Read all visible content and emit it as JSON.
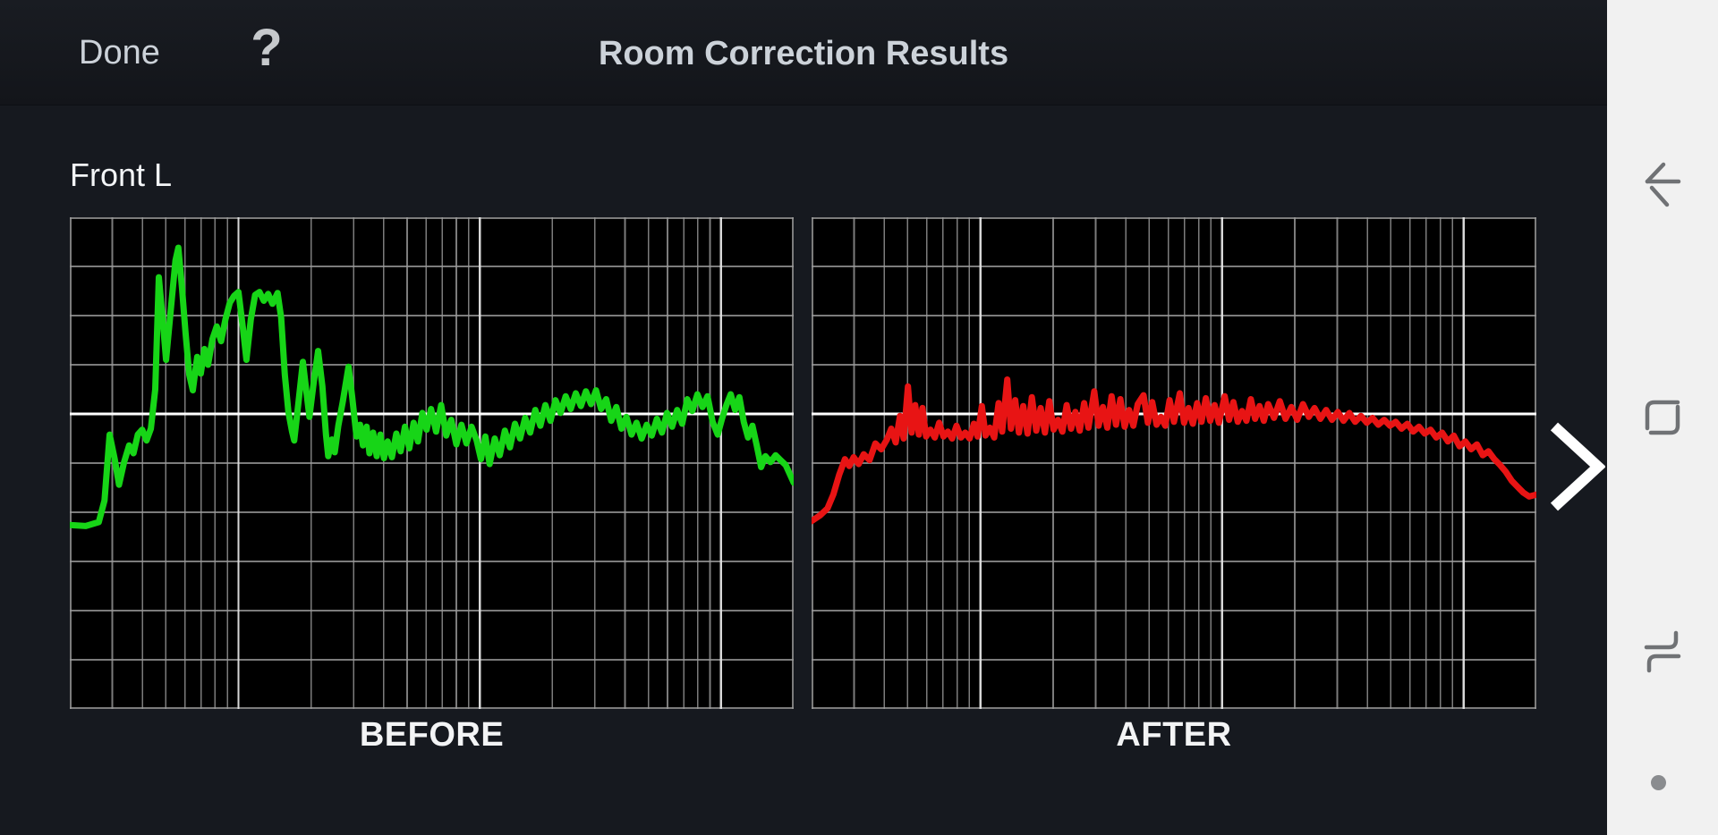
{
  "topbar": {
    "done_label": "Done",
    "help_label": "?",
    "title": "Room Correction Results"
  },
  "channel_label": "Front L",
  "pager": {
    "next_icon": "chevron-right"
  },
  "navbar": {
    "items": [
      {
        "id": "back",
        "icon": "back-arrow-icon"
      },
      {
        "id": "home",
        "icon": "home-outline-icon"
      },
      {
        "id": "recents",
        "icon": "recents-icon"
      }
    ],
    "handle": "hide-navbar-dot"
  },
  "colors": {
    "app_bg": "#16191f",
    "topbar_bg_top": "#191c22",
    "topbar_bg_bottom": "#13151a",
    "text_primary": "#f3f5f7",
    "text_secondary": "#ccd2d9",
    "chart_bg": "#000000",
    "grid_minor": "#9b9b9b",
    "grid_major": "#e3e3e3",
    "grid_reference": "#ffffff",
    "before_curve": "#17d517",
    "after_curve": "#e81414",
    "chevron": "#ffffff",
    "navbar_bg": "#f1f1f1",
    "navbar_icon": "#707275"
  },
  "chart_data": [
    {
      "type": "line",
      "title": "BEFORE",
      "series": [
        {
          "name": "Front L response before correction",
          "color_key": "before_curve"
        }
      ],
      "x_axis": {
        "scale": "log",
        "min_hz": 20,
        "max_hz": 20000,
        "major_gridlines_hz": [
          100,
          1000,
          10000
        ],
        "minor_gridlines": "steps 2-9 within each decade",
        "tick_labels": false
      },
      "y_axis": {
        "units": "dB relative to reference line",
        "db_per_division": 5,
        "top_db": 20,
        "bottom_db": -30,
        "reference_db": 0,
        "tick_labels": false
      },
      "legend": false,
      "points_format": "x = log10(hz/20)/3 (0..1 across axis), y = dB relative to reference",
      "points": [
        [
          0,
          -11.3
        ],
        [
          0.022,
          -11.4
        ],
        [
          0.04,
          -11
        ],
        [
          0.048,
          -8.8
        ],
        [
          0.055,
          -2.1
        ],
        [
          0.062,
          -4.6
        ],
        [
          0.068,
          -7.2
        ],
        [
          0.075,
          -4.9
        ],
        [
          0.082,
          -3.2
        ],
        [
          0.088,
          -4
        ],
        [
          0.094,
          -2.1
        ],
        [
          0.1,
          -1.6
        ],
        [
          0.106,
          -2.7
        ],
        [
          0.112,
          -1.5
        ],
        [
          0.118,
          2.5
        ],
        [
          0.123,
          13.9
        ],
        [
          0.128,
          9.8
        ],
        [
          0.133,
          5.5
        ],
        [
          0.14,
          11
        ],
        [
          0.146,
          15.6
        ],
        [
          0.15,
          16.9
        ],
        [
          0.155,
          12.8
        ],
        [
          0.16,
          8.2
        ],
        [
          0.165,
          4
        ],
        [
          0.17,
          2.4
        ],
        [
          0.176,
          5.8
        ],
        [
          0.181,
          4.1
        ],
        [
          0.186,
          6.6
        ],
        [
          0.191,
          5
        ],
        [
          0.197,
          7.6
        ],
        [
          0.203,
          8.9
        ],
        [
          0.209,
          7.4
        ],
        [
          0.215,
          9.6
        ],
        [
          0.221,
          11.3
        ],
        [
          0.227,
          12
        ],
        [
          0.233,
          12.4
        ],
        [
          0.239,
          8.8
        ],
        [
          0.244,
          5.5
        ],
        [
          0.25,
          9.6
        ],
        [
          0.256,
          12.1
        ],
        [
          0.262,
          12.4
        ],
        [
          0.268,
          11.5
        ],
        [
          0.274,
          12.2
        ],
        [
          0.28,
          11.2
        ],
        [
          0.287,
          12.3
        ],
        [
          0.292,
          9.8
        ],
        [
          0.297,
          4
        ],
        [
          0.302,
          0.2
        ],
        [
          0.307,
          -1.8
        ],
        [
          0.31,
          -2.7
        ],
        [
          0.316,
          1.2
        ],
        [
          0.322,
          5.3
        ],
        [
          0.327,
          2.2
        ],
        [
          0.331,
          -0.3
        ],
        [
          0.337,
          3.2
        ],
        [
          0.343,
          6.4
        ],
        [
          0.349,
          2.8
        ],
        [
          0.354,
          -2.2
        ],
        [
          0.357,
          -4.3
        ],
        [
          0.362,
          -2.6
        ],
        [
          0.366,
          -3.9
        ],
        [
          0.371,
          -1.2
        ],
        [
          0.377,
          1.2
        ],
        [
          0.385,
          4.8
        ],
        [
          0.39,
          1.8
        ],
        [
          0.396,
          -2.3
        ],
        [
          0.401,
          -1.1
        ],
        [
          0.405,
          -3.2
        ],
        [
          0.41,
          -1.3
        ],
        [
          0.414,
          -4
        ],
        [
          0.419,
          -1.9
        ],
        [
          0.424,
          -4.3
        ],
        [
          0.429,
          -2.1
        ],
        [
          0.434,
          -4.5
        ],
        [
          0.439,
          -2.8
        ],
        [
          0.445,
          -4.4
        ],
        [
          0.451,
          -2
        ],
        [
          0.457,
          -3.8
        ],
        [
          0.463,
          -1.3
        ],
        [
          0.469,
          -3.5
        ],
        [
          0.475,
          -0.9
        ],
        [
          0.481,
          -2.8
        ],
        [
          0.487,
          0.1
        ],
        [
          0.493,
          -1.6
        ],
        [
          0.499,
          0.5
        ],
        [
          0.506,
          -1.8
        ],
        [
          0.513,
          0.9
        ],
        [
          0.52,
          -2.2
        ],
        [
          0.527,
          -0.6
        ],
        [
          0.534,
          -3.1
        ],
        [
          0.541,
          -1.1
        ],
        [
          0.548,
          -3
        ],
        [
          0.555,
          -1.3
        ],
        [
          0.562,
          -2.7
        ],
        [
          0.568,
          -4.6
        ],
        [
          0.574,
          -2.3
        ],
        [
          0.58,
          -5.1
        ],
        [
          0.587,
          -2.5
        ],
        [
          0.594,
          -4.2
        ],
        [
          0.601,
          -1.7
        ],
        [
          0.608,
          -3.4
        ],
        [
          0.615,
          -1
        ],
        [
          0.622,
          -2.5
        ],
        [
          0.629,
          -0.4
        ],
        [
          0.636,
          -1.9
        ],
        [
          0.643,
          0.4
        ],
        [
          0.65,
          -1.2
        ],
        [
          0.657,
          0.9
        ],
        [
          0.664,
          -0.7
        ],
        [
          0.671,
          1.4
        ],
        [
          0.678,
          0.1
        ],
        [
          0.685,
          1.8
        ],
        [
          0.692,
          0.5
        ],
        [
          0.699,
          2.1
        ],
        [
          0.706,
          0.8
        ],
        [
          0.713,
          2.3
        ],
        [
          0.72,
          1
        ],
        [
          0.727,
          2.4
        ],
        [
          0.734,
          0.5
        ],
        [
          0.741,
          1.5
        ],
        [
          0.748,
          -0.7
        ],
        [
          0.755,
          0.7
        ],
        [
          0.762,
          -1.5
        ],
        [
          0.769,
          -0.3
        ],
        [
          0.776,
          -2.1
        ],
        [
          0.783,
          -0.9
        ],
        [
          0.79,
          -2.5
        ],
        [
          0.797,
          -1.1
        ],
        [
          0.804,
          -2.2
        ],
        [
          0.811,
          -0.5
        ],
        [
          0.818,
          -1.9
        ],
        [
          0.825,
          0.1
        ],
        [
          0.832,
          -1.3
        ],
        [
          0.839,
          0.4
        ],
        [
          0.846,
          -1
        ],
        [
          0.853,
          1.5
        ],
        [
          0.86,
          0.3
        ],
        [
          0.867,
          2
        ],
        [
          0.874,
          0.7
        ],
        [
          0.881,
          1.8
        ],
        [
          0.888,
          -0.8
        ],
        [
          0.895,
          -2.1
        ],
        [
          0.901,
          -0.5
        ],
        [
          0.907,
          0.9
        ],
        [
          0.913,
          2
        ],
        [
          0.919,
          0.4
        ],
        [
          0.925,
          1.7
        ],
        [
          0.931,
          -0.8
        ],
        [
          0.937,
          -2.4
        ],
        [
          0.943,
          -1.2
        ],
        [
          0.949,
          -3.2
        ],
        [
          0.955,
          -5.4
        ],
        [
          0.961,
          -4.3
        ],
        [
          0.968,
          -4.9
        ],
        [
          0.975,
          -4.2
        ],
        [
          0.982,
          -4.7
        ],
        [
          0.989,
          -5.2
        ],
        [
          1,
          -7
        ]
      ]
    },
    {
      "type": "line",
      "title": "AFTER",
      "series": [
        {
          "name": "Front L response after correction",
          "color_key": "after_curve"
        }
      ],
      "x_axis": {
        "scale": "log",
        "min_hz": 20,
        "max_hz": 20000,
        "major_gridlines_hz": [
          100,
          1000,
          10000
        ],
        "minor_gridlines": "steps 2-9 within each decade",
        "tick_labels": false
      },
      "y_axis": {
        "units": "dB relative to reference line",
        "db_per_division": 5,
        "top_db": 20,
        "bottom_db": -30,
        "reference_db": 0,
        "tick_labels": false
      },
      "legend": false,
      "points_format": "x = log10(hz/20)/3 (0..1 across axis), y = dB relative to reference",
      "points": [
        [
          0,
          -10.9
        ],
        [
          0.012,
          -10.3
        ],
        [
          0.022,
          -9.6
        ],
        [
          0.03,
          -8.2
        ],
        [
          0.038,
          -6.2
        ],
        [
          0.046,
          -4.6
        ],
        [
          0.052,
          -5.3
        ],
        [
          0.058,
          -4.4
        ],
        [
          0.065,
          -5.1
        ],
        [
          0.072,
          -4.1
        ],
        [
          0.08,
          -4.7
        ],
        [
          0.088,
          -3
        ],
        [
          0.096,
          -3.6
        ],
        [
          0.104,
          -2.6
        ],
        [
          0.11,
          -1.5
        ],
        [
          0.116,
          -2.9
        ],
        [
          0.122,
          -0.2
        ],
        [
          0.127,
          -2.5
        ],
        [
          0.133,
          2.8
        ],
        [
          0.138,
          -1.9
        ],
        [
          0.143,
          0.9
        ],
        [
          0.148,
          -2.1
        ],
        [
          0.153,
          0.6
        ],
        [
          0.158,
          -2.3
        ],
        [
          0.164,
          -1.6
        ],
        [
          0.17,
          -2.4
        ],
        [
          0.176,
          -0.9
        ],
        [
          0.182,
          -2.3
        ],
        [
          0.188,
          -1.8
        ],
        [
          0.194,
          -2.5
        ],
        [
          0.2,
          -1.2
        ],
        [
          0.206,
          -2.4
        ],
        [
          0.212,
          -1.9
        ],
        [
          0.218,
          -2.5
        ],
        [
          0.224,
          -1
        ],
        [
          0.229,
          -2.3
        ],
        [
          0.235,
          0.8
        ],
        [
          0.24,
          -2.2
        ],
        [
          0.246,
          -1.4
        ],
        [
          0.252,
          -2.4
        ],
        [
          0.258,
          1.1
        ],
        [
          0.263,
          -1.8
        ],
        [
          0.27,
          3.5
        ],
        [
          0.275,
          -1.5
        ],
        [
          0.281,
          1.4
        ],
        [
          0.286,
          -1.9
        ],
        [
          0.292,
          0.8
        ],
        [
          0.298,
          -2
        ],
        [
          0.304,
          1.7
        ],
        [
          0.31,
          -1.7
        ],
        [
          0.316,
          0.6
        ],
        [
          0.322,
          -1.9
        ],
        [
          0.328,
          1.3
        ],
        [
          0.334,
          -1.6
        ],
        [
          0.34,
          -0.6
        ],
        [
          0.346,
          -1.8
        ],
        [
          0.352,
          0.9
        ],
        [
          0.358,
          -1.5
        ],
        [
          0.364,
          0.2
        ],
        [
          0.37,
          -1.7
        ],
        [
          0.376,
          1.1
        ],
        [
          0.382,
          -1.4
        ],
        [
          0.39,
          2.3
        ],
        [
          0.396,
          -1.2
        ],
        [
          0.402,
          0.7
        ],
        [
          0.408,
          -1.4
        ],
        [
          0.414,
          1.8
        ],
        [
          0.42,
          -1.1
        ],
        [
          0.426,
          1.5
        ],
        [
          0.432,
          -1.3
        ],
        [
          0.438,
          0.4
        ],
        [
          0.444,
          -1.2
        ],
        [
          0.45,
          1
        ],
        [
          0.458,
          1.9
        ],
        [
          0.464,
          -0.9
        ],
        [
          0.47,
          1.2
        ],
        [
          0.476,
          -1.1
        ],
        [
          0.482,
          -0.3
        ],
        [
          0.488,
          -1.2
        ],
        [
          0.494,
          1.4
        ],
        [
          0.5,
          -0.8
        ],
        [
          0.508,
          2.1
        ],
        [
          0.514,
          -0.9
        ],
        [
          0.52,
          0.6
        ],
        [
          0.526,
          -1
        ],
        [
          0.532,
          1.1
        ],
        [
          0.538,
          -0.8
        ],
        [
          0.544,
          1.6
        ],
        [
          0.55,
          -0.7
        ],
        [
          0.556,
          0.9
        ],
        [
          0.562,
          -0.9
        ],
        [
          0.57,
          1.8
        ],
        [
          0.576,
          -0.6
        ],
        [
          0.582,
          1.2
        ],
        [
          0.588,
          -0.8
        ],
        [
          0.594,
          0.3
        ],
        [
          0.6,
          -0.7
        ],
        [
          0.606,
          1.5
        ],
        [
          0.612,
          -0.5
        ],
        [
          0.618,
          0.8
        ],
        [
          0.624,
          -0.7
        ],
        [
          0.63,
          1
        ],
        [
          0.638,
          -0.4
        ],
        [
          0.646,
          1.3
        ],
        [
          0.654,
          -0.5
        ],
        [
          0.662,
          0.7
        ],
        [
          0.67,
          -0.6
        ],
        [
          0.678,
          1
        ],
        [
          0.686,
          -0.3
        ],
        [
          0.694,
          0.6
        ],
        [
          0.702,
          -0.5
        ],
        [
          0.71,
          0.4
        ],
        [
          0.718,
          -0.6
        ],
        [
          0.726,
          0.2
        ],
        [
          0.734,
          -0.7
        ],
        [
          0.742,
          0.1
        ],
        [
          0.75,
          -0.8
        ],
        [
          0.758,
          -0.2
        ],
        [
          0.766,
          -0.9
        ],
        [
          0.774,
          -0.4
        ],
        [
          0.782,
          -1.1
        ],
        [
          0.79,
          -0.6
        ],
        [
          0.798,
          -1.2
        ],
        [
          0.806,
          -0.8
        ],
        [
          0.814,
          -1.5
        ],
        [
          0.822,
          -1
        ],
        [
          0.83,
          -1.8
        ],
        [
          0.838,
          -1.3
        ],
        [
          0.846,
          -2
        ],
        [
          0.854,
          -1.6
        ],
        [
          0.862,
          -2.4
        ],
        [
          0.87,
          -1.9
        ],
        [
          0.878,
          -2.8
        ],
        [
          0.886,
          -2.2
        ],
        [
          0.894,
          -3.3
        ],
        [
          0.902,
          -2.8
        ],
        [
          0.91,
          -3.6
        ],
        [
          0.918,
          -3.1
        ],
        [
          0.926,
          -4.2
        ],
        [
          0.934,
          -3.8
        ],
        [
          0.942,
          -4.6
        ],
        [
          0.95,
          -5.2
        ],
        [
          0.958,
          -5.9
        ],
        [
          0.966,
          -6.8
        ],
        [
          0.974,
          -7.4
        ],
        [
          0.982,
          -8
        ],
        [
          0.99,
          -8.4
        ],
        [
          1,
          -8.2
        ]
      ]
    }
  ]
}
